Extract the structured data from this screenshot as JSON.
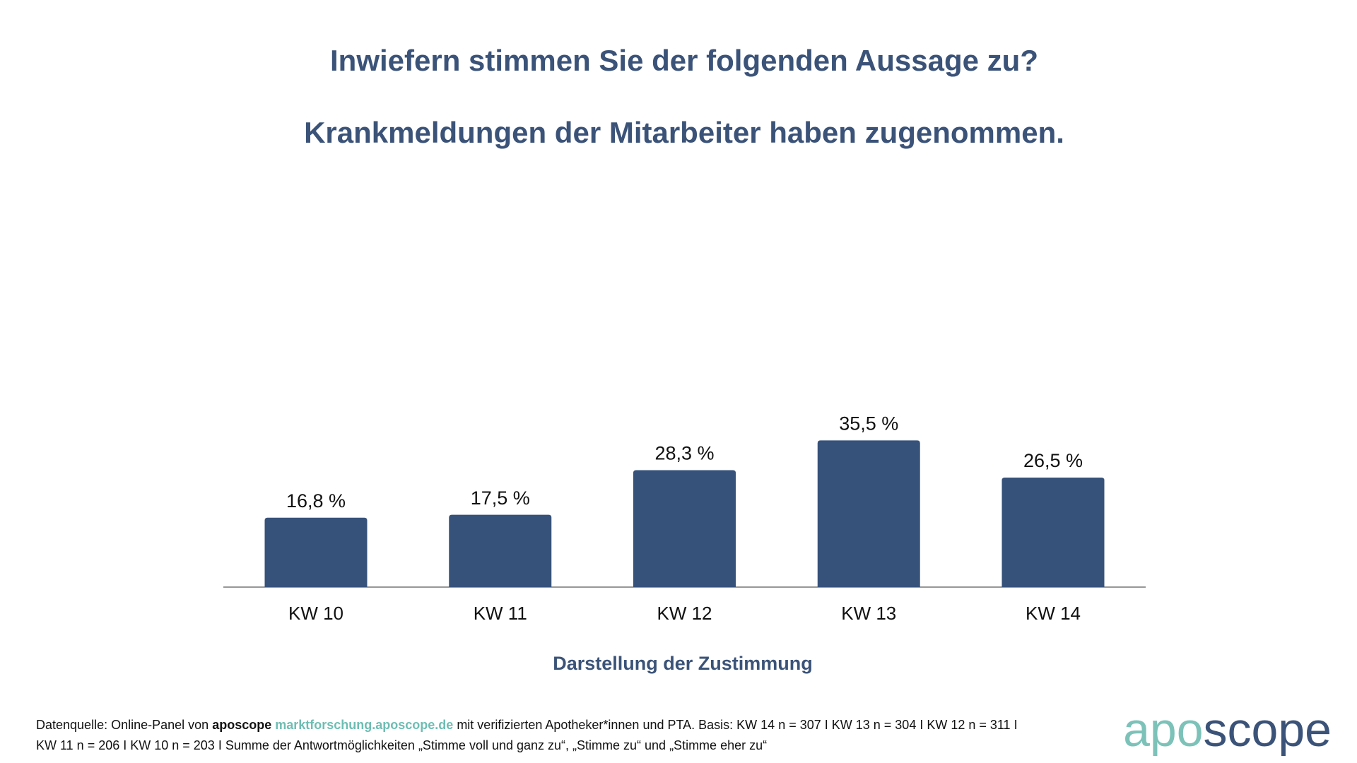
{
  "chart_data": {
    "type": "bar",
    "title": "Inwiefern stimmen Sie der folgenden Aussage zu?",
    "subtitle": "Krankmeldungen der Mitarbeiter haben zugenommen.",
    "categories": [
      "KW 10",
      "KW 11",
      "KW 12",
      "KW 13",
      "KW 14"
    ],
    "values": [
      16.8,
      17.5,
      28.3,
      35.5,
      26.5
    ],
    "value_labels": [
      "16,8 %",
      "17,5 %",
      "28,3 %",
      "35,5 %",
      "26,5 %"
    ],
    "x_label": "Darstellung der Zustimmung",
    "color": "#36527a"
  },
  "source": {
    "prefix": "Datenquelle: Online-Panel von",
    "brand": "aposcope",
    "link": "marktforschung.aposcope.de",
    "suffix": "mit verifizierten Apotheker*innen und PTA. Basis: KW 14 n = 307 I KW 13 n = 304 I KW 12 n = 311 I",
    "line2": "KW 11 n = 206 I KW 10 n = 203 I Summe der Antwortmöglichkeiten „Stimme voll und ganz zu“, „Stimme zu“ und „Stimme eher zu“"
  },
  "logo": {
    "part1": "apo",
    "part2": "scope"
  }
}
